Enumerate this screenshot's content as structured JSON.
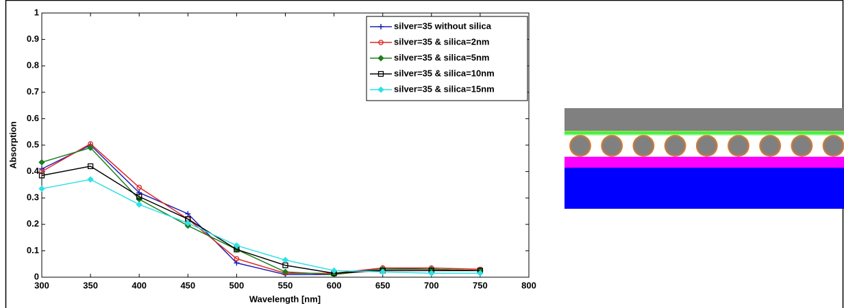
{
  "chart_data": {
    "type": "line",
    "x_label": "Wavelength [nm]",
    "y_label": "Absorption",
    "x": [
      300,
      350,
      400,
      450,
      500,
      550,
      600,
      650,
      700,
      750
    ],
    "xlim": [
      300,
      800
    ],
    "xticks": [
      300,
      350,
      400,
      450,
      500,
      550,
      600,
      650,
      700,
      750,
      800
    ],
    "ylim": [
      0,
      1
    ],
    "yticks": [
      0,
      0.1,
      0.2,
      0.3,
      0.4,
      0.5,
      0.6,
      0.7,
      0.8,
      0.9,
      1
    ],
    "grid": false,
    "legend": "upper right",
    "series": [
      {
        "name": "silver=35 without silica",
        "color": "#1f1fb4",
        "marker": "plus",
        "values": [
          0.41,
          0.5,
          0.32,
          0.24,
          0.054,
          0.01,
          0.01,
          0.035,
          0.03,
          0.025
        ]
      },
      {
        "name": "silver=35 & silica=2nm",
        "color": "#e02424",
        "marker": "circle",
        "values": [
          0.4,
          0.505,
          0.34,
          0.22,
          0.07,
          0.015,
          0.015,
          0.035,
          0.035,
          0.03
        ]
      },
      {
        "name": "silver=35 & silica=5nm",
        "color": "#1e7d1e",
        "marker": "diamond",
        "values": [
          0.435,
          0.49,
          0.295,
          0.195,
          0.105,
          0.02,
          0.01,
          0.03,
          0.03,
          0.025
        ]
      },
      {
        "name": "silver=35 & silica=10nm",
        "color": "#000000",
        "marker": "square",
        "values": [
          0.385,
          0.42,
          0.305,
          0.22,
          0.105,
          0.045,
          0.015,
          0.025,
          0.025,
          0.025
        ]
      },
      {
        "name": "silver=35 & silica=15nm",
        "color": "#2ee0e6",
        "marker": "diamond",
        "values": [
          0.335,
          0.37,
          0.275,
          0.205,
          0.12,
          0.065,
          0.025,
          0.02,
          0.015,
          0.015
        ]
      }
    ]
  }
}
